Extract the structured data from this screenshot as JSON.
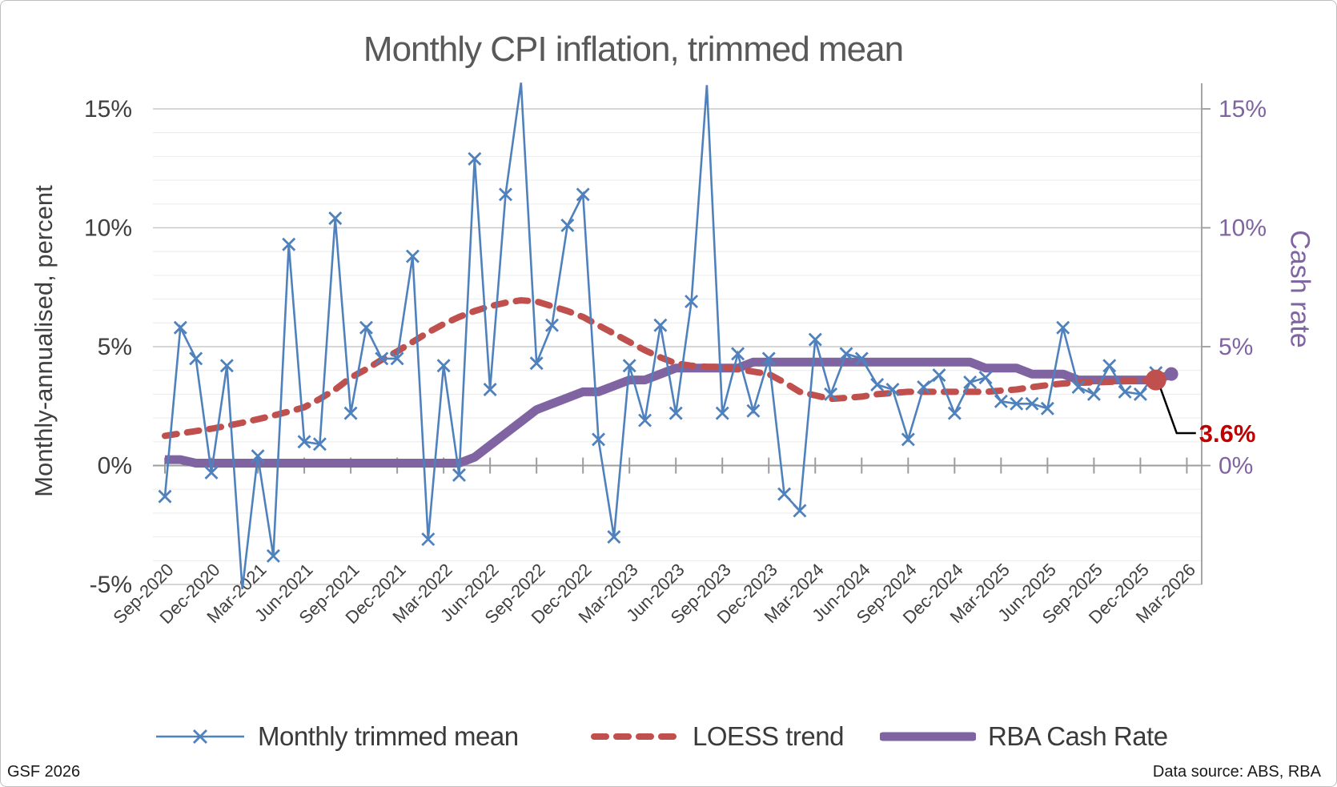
{
  "title": "Monthly CPI inflation, trimmed mean",
  "left_axis": {
    "title": "Monthly-annualised, percent",
    "tick_labels": [
      "15%",
      "10%",
      "5%",
      "0%",
      "-5%"
    ],
    "tick_values": [
      15,
      10,
      5,
      0,
      -5
    ]
  },
  "right_axis": {
    "title": "Cash rate",
    "tick_labels": [
      "15%",
      "10%",
      "5%",
      "0%"
    ],
    "tick_values": [
      15,
      10,
      5,
      0
    ]
  },
  "legend": [
    {
      "label": "Monthly trimmed mean",
      "swatch": "line-x-marker"
    },
    {
      "label": "LOESS trend",
      "swatch": "dashed-line"
    },
    {
      "label": "RBA Cash Rate",
      "swatch": "thick-line"
    }
  ],
  "annotation": {
    "label": "3.6%"
  },
  "footer": {
    "left": "GSF 2026",
    "right": "Data source: ABS, RBA"
  },
  "colors": {
    "blue": "#4F81BD",
    "red": "#C0504D",
    "purple": "#8064A2",
    "annotation_red": "#C00000",
    "leader_black": "#000000",
    "axis_text": "#3F3F3F",
    "x_label_text": "#404040",
    "title_text": "#595959",
    "grid_minor": "#EDEDED",
    "grid_major": "#C9C9C9",
    "axis_line": "#9C9C9C"
  },
  "chart_data": {
    "type": "line",
    "title": "Monthly CPI inflation, trimmed mean",
    "ylabel_left": "Monthly-annualised, percent",
    "ylabel_right": "Cash rate",
    "ylim_left": [
      -5,
      15
    ],
    "ylim_right": [
      0,
      15
    ],
    "grid": "horizontal-1pct-minor-5pct-major",
    "legend_position": "bottom",
    "x_tick_labels": [
      "Sep-2020",
      "Dec-2020",
      "Mar-2021",
      "Jun-2021",
      "Sep-2021",
      "Dec-2021",
      "Mar-2022",
      "Jun-2022",
      "Sep-2022",
      "Dec-2022",
      "Mar-2023",
      "Jun-2023",
      "Sep-2023",
      "Dec-2023",
      "Mar-2024",
      "Jun-2024",
      "Sep-2024",
      "Dec-2024",
      "Mar-2025",
      "Jun-2025",
      "Sep-2025",
      "Dec-2025",
      "Mar-2026"
    ],
    "categories": [
      "Sep-2020",
      "Oct-2020",
      "Nov-2020",
      "Dec-2020",
      "Jan-2021",
      "Feb-2021",
      "Mar-2021",
      "Apr-2021",
      "May-2021",
      "Jun-2021",
      "Jul-2021",
      "Aug-2021",
      "Sep-2021",
      "Oct-2021",
      "Nov-2021",
      "Dec-2021",
      "Jan-2022",
      "Feb-2022",
      "Mar-2022",
      "Apr-2022",
      "May-2022",
      "Jun-2022",
      "Jul-2022",
      "Aug-2022",
      "Sep-2022",
      "Oct-2022",
      "Nov-2022",
      "Dec-2022",
      "Jan-2023",
      "Feb-2023",
      "Mar-2023",
      "Apr-2023",
      "May-2023",
      "Jun-2023",
      "Jul-2023",
      "Aug-2023",
      "Sep-2023",
      "Oct-2023",
      "Nov-2023",
      "Dec-2023",
      "Jan-2024",
      "Feb-2024",
      "Mar-2024",
      "Apr-2024",
      "May-2024",
      "Jun-2024",
      "Jul-2024",
      "Aug-2024",
      "Sep-2024",
      "Oct-2024",
      "Nov-2024",
      "Dec-2024",
      "Jan-2025",
      "Feb-2025",
      "Mar-2025",
      "Apr-2025",
      "May-2025",
      "Jun-2025",
      "Jul-2025",
      "Aug-2025",
      "Sep-2025",
      "Oct-2025",
      "Nov-2025",
      "Dec-2025",
      "Jan-2026",
      "Feb-2026",
      "Mar-2026"
    ],
    "series": [
      {
        "name": "Monthly trimmed mean",
        "style": "thin-line-x-markers",
        "axis": "left",
        "values": [
          -1.3,
          5.8,
          4.5,
          -0.3,
          4.2,
          -5.2,
          0.4,
          -3.8,
          9.3,
          1.0,
          0.9,
          10.4,
          2.2,
          5.8,
          4.5,
          4.5,
          8.8,
          -3.1,
          4.2,
          -0.4,
          12.9,
          3.2,
          11.4,
          16.1,
          4.3,
          5.9,
          10.1,
          11.4,
          1.1,
          -3.0,
          4.2,
          1.9,
          5.9,
          2.2,
          6.9,
          16.0,
          2.2,
          4.7,
          2.3,
          4.5,
          -1.2,
          -1.9,
          5.3,
          3.0,
          4.7,
          4.5,
          3.4,
          3.2,
          1.1,
          3.3,
          3.8,
          2.2,
          3.5,
          3.7,
          2.7,
          2.6,
          2.6,
          2.4,
          5.8,
          3.3,
          3.0,
          4.2,
          3.1,
          3.0,
          3.9
        ],
        "no_marker_idx": [
          5,
          23,
          35
        ]
      },
      {
        "name": "LOESS trend",
        "style": "thick-dashed",
        "axis": "left",
        "values": [
          1.25,
          1.35,
          1.45,
          1.55,
          1.67,
          1.8,
          1.95,
          2.1,
          2.27,
          2.45,
          2.8,
          3.2,
          3.7,
          4.05,
          4.45,
          4.8,
          5.2,
          5.6,
          5.95,
          6.25,
          6.5,
          6.7,
          6.85,
          6.95,
          6.9,
          6.7,
          6.5,
          6.25,
          5.9,
          5.55,
          5.2,
          4.85,
          4.55,
          4.3,
          4.2,
          4.15,
          4.15,
          4.05,
          3.95,
          3.85,
          3.5,
          3.1,
          2.95,
          2.8,
          2.85,
          2.9,
          3.0,
          3.05,
          3.1,
          3.1,
          3.1,
          3.1,
          3.1,
          3.1,
          3.15,
          3.2,
          3.3,
          3.38,
          3.45,
          3.48,
          3.5,
          3.52,
          3.55,
          3.58,
          3.6
        ],
        "end_dot": true,
        "end_value_label": "3.6%"
      },
      {
        "name": "RBA Cash Rate",
        "style": "thick-solid",
        "axis": "right",
        "values": [
          0.25,
          0.25,
          0.1,
          0.1,
          0.1,
          0.1,
          0.1,
          0.1,
          0.1,
          0.1,
          0.1,
          0.1,
          0.1,
          0.1,
          0.1,
          0.1,
          0.1,
          0.1,
          0.1,
          0.1,
          0.35,
          0.85,
          1.35,
          1.85,
          2.35,
          2.6,
          2.85,
          3.1,
          3.1,
          3.35,
          3.6,
          3.6,
          3.85,
          4.1,
          4.1,
          4.1,
          4.1,
          4.1,
          4.35,
          4.35,
          4.35,
          4.35,
          4.35,
          4.35,
          4.35,
          4.35,
          4.35,
          4.35,
          4.35,
          4.35,
          4.35,
          4.35,
          4.35,
          4.1,
          4.1,
          4.1,
          3.85,
          3.85,
          3.85,
          3.6,
          3.6,
          3.6,
          3.6,
          3.6,
          3.6,
          3.85
        ],
        "end_dot": true
      }
    ]
  }
}
